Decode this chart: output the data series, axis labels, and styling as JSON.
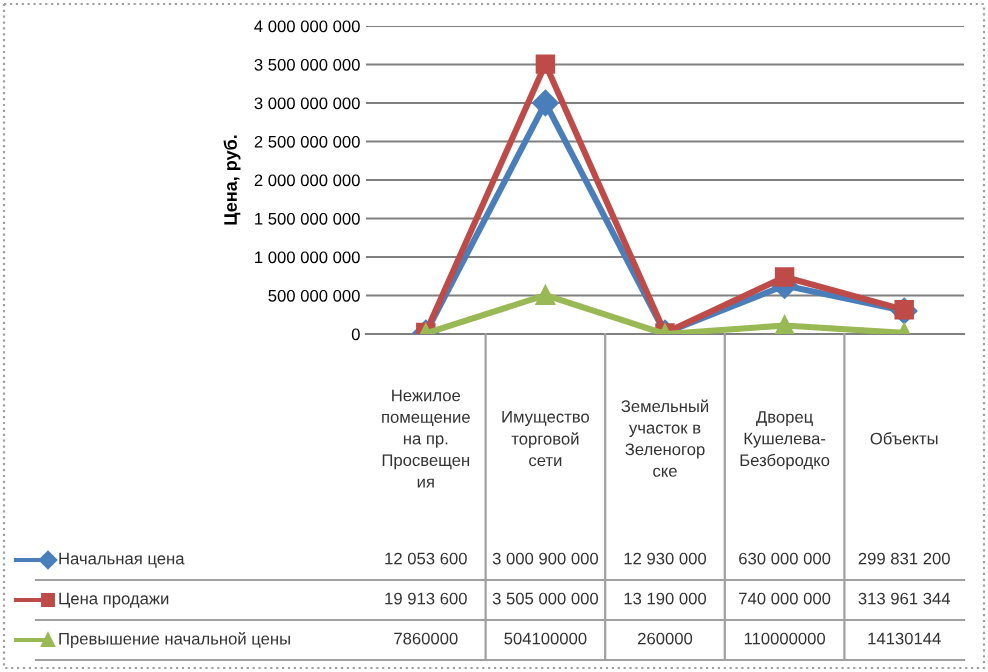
{
  "chart_data": {
    "type": "line",
    "ylabel": "Цена, руб.",
    "categories": [
      "Нежилое помещение на пр. Просвещения",
      "Имущество торговой сети",
      "Земельный участок в Зеленогорске",
      "Дворец Кушелева-Безбородко",
      "Объекты"
    ],
    "series": [
      {
        "name": "Начальная цена",
        "color": "#4a7ebb",
        "marker": "diamond",
        "values": [
          12053600,
          3000900000,
          12930000,
          630000000,
          299831200
        ],
        "value_labels": [
          "12 053 600",
          "3 000 900 000",
          "12 930 000",
          "630 000 000",
          "299 831 200"
        ]
      },
      {
        "name": "Цена продажи",
        "color": "#be4b48",
        "marker": "square",
        "values": [
          19913600,
          3505000000,
          13190000,
          740000000,
          313961344
        ],
        "value_labels": [
          "19 913 600",
          "3 505 000 000",
          "13 190 000",
          "740 000 000",
          "313 961 344"
        ]
      },
      {
        "name": "Превышение начальной цены",
        "color": "#98b954",
        "marker": "triangle",
        "values": [
          7860000,
          504100000,
          260000,
          110000000,
          14130144
        ],
        "value_labels": [
          "7860000",
          "504100000",
          "260000",
          "110000000",
          "14130144"
        ]
      }
    ],
    "ylim": [
      0,
      4000000000
    ],
    "yticks": [
      {
        "value": 0,
        "label": "0"
      },
      {
        "value": 500000000,
        "label": "500 000 000"
      },
      {
        "value": 1000000000,
        "label": "1 000 000 000"
      },
      {
        "value": 1500000000,
        "label": "1 500 000 000"
      },
      {
        "value": 2000000000,
        "label": "2 000 000 000"
      },
      {
        "value": 2500000000,
        "label": "2 500 000 000"
      },
      {
        "value": 3000000000,
        "label": "3 000 000 000"
      },
      {
        "value": 3500000000,
        "label": "3 500 000 000"
      },
      {
        "value": 4000000000,
        "label": "4 000 000 000"
      }
    ],
    "grid": "y",
    "legend": "bottom left",
    "line_style": "solid"
  }
}
